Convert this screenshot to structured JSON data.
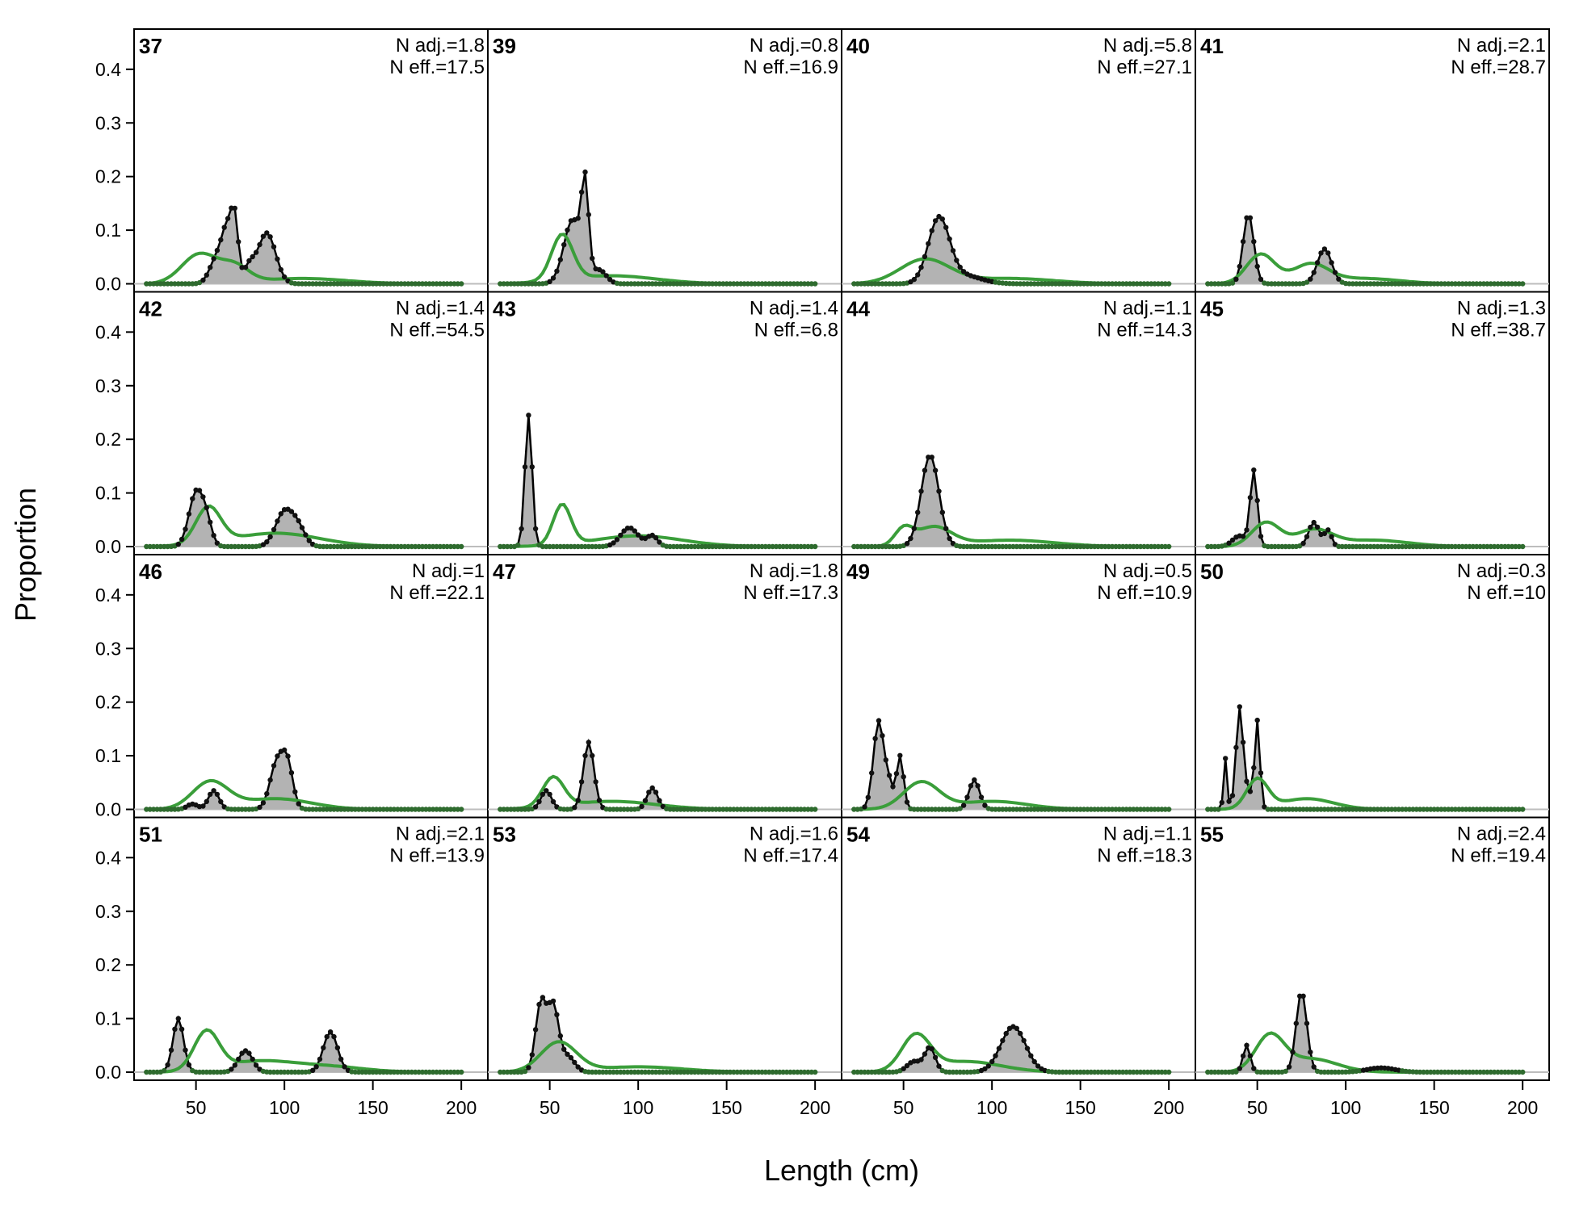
{
  "chart_data": {
    "type": "line",
    "title": "",
    "xlabel": "Length (cm)",
    "ylabel": "Proportion",
    "xlim": [
      15,
      215
    ],
    "ylim": [
      -0.015,
      0.475
    ],
    "xticks": [
      "50",
      "100",
      "150",
      "200"
    ],
    "yticks": [
      "0.0",
      "0.1",
      "0.2",
      "0.3",
      "0.4"
    ],
    "x_range": [
      22,
      200
    ],
    "x_step": 2,
    "series": [
      {
        "role": "observed",
        "color": "#000000",
        "fill": "#b3b3b3"
      },
      {
        "role": "expected",
        "color": "#3a9e3a"
      }
    ],
    "panels": [
      {
        "id": "37",
        "n_adj": "N adj.=1.8",
        "n_eff": "N eff.=17.5",
        "obs": [
          [
            68,
            0.092,
            3
          ],
          [
            72,
            0.1,
            2
          ],
          [
            62,
            0.05,
            4
          ],
          [
            90,
            0.095,
            5
          ],
          [
            80,
            0.03,
            3
          ]
        ],
        "exp": [
          [
            52,
            0.055,
            10
          ],
          [
            72,
            0.03,
            8
          ],
          [
            110,
            0.01,
            25
          ]
        ]
      },
      {
        "id": "42",
        "n_adj": "N adj.=1.4",
        "n_eff": "N eff.=54.5",
        "obs": [
          [
            50,
            0.1,
            4
          ],
          [
            56,
            0.04,
            3
          ],
          [
            100,
            0.065,
            5
          ],
          [
            108,
            0.03,
            4
          ]
        ],
        "exp": [
          [
            57,
            0.068,
            7
          ],
          [
            95,
            0.025,
            25
          ]
        ]
      },
      {
        "id": "46",
        "n_adj": "N adj.=1",
        "n_eff": "N eff.=22.1",
        "obs": [
          [
            96,
            0.09,
            4
          ],
          [
            102,
            0.07,
            3
          ],
          [
            60,
            0.035,
            3
          ],
          [
            48,
            0.01,
            3
          ]
        ],
        "exp": [
          [
            58,
            0.05,
            10
          ],
          [
            95,
            0.02,
            20
          ]
        ]
      },
      {
        "id": "51",
        "n_adj": "N adj.=2.1",
        "n_eff": "N eff.=13.9",
        "obs": [
          [
            40,
            0.1,
            3
          ],
          [
            78,
            0.04,
            4
          ],
          [
            126,
            0.075,
            4
          ]
        ],
        "exp": [
          [
            56,
            0.072,
            7
          ],
          [
            85,
            0.02,
            20
          ],
          [
            125,
            0.01,
            20
          ]
        ]
      },
      {
        "id": "39",
        "n_adj": "N adj.=0.8",
        "n_eff": "N eff.=16.9",
        "obs": [
          [
            63,
            0.12,
            5
          ],
          [
            70,
            0.16,
            2
          ],
          [
            78,
            0.025,
            4
          ]
        ],
        "exp": [
          [
            57,
            0.085,
            6
          ],
          [
            85,
            0.015,
            25
          ]
        ]
      },
      {
        "id": "43",
        "n_adj": "N adj.=1.4",
        "n_eff": "N eff.=6.8",
        "obs": [
          [
            38,
            0.245,
            2
          ],
          [
            95,
            0.035,
            5
          ],
          [
            108,
            0.02,
            3
          ]
        ],
        "exp": [
          [
            57,
            0.075,
            5
          ],
          [
            100,
            0.02,
            25
          ]
        ]
      },
      {
        "id": "47",
        "n_adj": "N adj.=1.8",
        "n_eff": "N eff.=17.3",
        "obs": [
          [
            72,
            0.125,
            3
          ],
          [
            108,
            0.04,
            3
          ],
          [
            48,
            0.035,
            3
          ]
        ],
        "exp": [
          [
            52,
            0.055,
            6
          ],
          [
            85,
            0.015,
            25
          ]
        ]
      },
      {
        "id": "53",
        "n_adj": "N adj.=1.6",
        "n_eff": "N eff.=17.4",
        "obs": [
          [
            45,
            0.13,
            3
          ],
          [
            52,
            0.12,
            3
          ],
          [
            60,
            0.03,
            4
          ]
        ],
        "exp": [
          [
            55,
            0.055,
            10
          ],
          [
            100,
            0.01,
            25
          ]
        ]
      },
      {
        "id": "40",
        "n_adj": "N adj.=5.8",
        "n_eff": "N eff.=27.1",
        "obs": [
          [
            70,
            0.12,
            6
          ],
          [
            84,
            0.015,
            10
          ]
        ],
        "exp": [
          [
            62,
            0.045,
            14
          ],
          [
            110,
            0.01,
            25
          ]
        ]
      },
      {
        "id": "44",
        "n_adj": "N adj.=1.1",
        "n_eff": "N eff.=14.3",
        "obs": [
          [
            65,
            0.17,
            5
          ]
        ],
        "exp": [
          [
            50,
            0.03,
            5
          ],
          [
            67,
            0.035,
            10
          ],
          [
            110,
            0.012,
            25
          ]
        ]
      },
      {
        "id": "49",
        "n_adj": "N adj.=0.5",
        "n_eff": "N eff.=10.9",
        "obs": [
          [
            36,
            0.165,
            3
          ],
          [
            48,
            0.1,
            2
          ],
          [
            90,
            0.055,
            3
          ],
          [
            42,
            0.04,
            2
          ]
        ],
        "exp": [
          [
            60,
            0.05,
            10
          ],
          [
            100,
            0.015,
            20
          ]
        ]
      },
      {
        "id": "54",
        "n_adj": "N adj.=1.1",
        "n_eff": "N eff.=18.3",
        "obs": [
          [
            112,
            0.085,
            7
          ],
          [
            65,
            0.045,
            3
          ],
          [
            56,
            0.02,
            4
          ]
        ],
        "exp": [
          [
            57,
            0.065,
            8
          ],
          [
            85,
            0.02,
            20
          ]
        ]
      },
      {
        "id": "41",
        "n_adj": "N adj.=2.1",
        "n_eff": "N eff.=28.7",
        "obs": [
          [
            45,
            0.13,
            3
          ],
          [
            88,
            0.065,
            4
          ]
        ],
        "exp": [
          [
            52,
            0.055,
            8
          ],
          [
            80,
            0.035,
            10
          ],
          [
            110,
            0.01,
            20
          ]
        ]
      },
      {
        "id": "45",
        "n_adj": "N adj.=1.3",
        "n_eff": "N eff.=38.7",
        "obs": [
          [
            48,
            0.14,
            2
          ],
          [
            82,
            0.045,
            3
          ],
          [
            90,
            0.03,
            2
          ],
          [
            40,
            0.02,
            4
          ]
        ],
        "exp": [
          [
            55,
            0.045,
            8
          ],
          [
            82,
            0.03,
            10
          ],
          [
            115,
            0.012,
            20
          ]
        ]
      },
      {
        "id": "50",
        "n_adj": "N adj.=0.3",
        "n_eff": "N eff.=10",
        "obs": [
          [
            40,
            0.19,
            2
          ],
          [
            50,
            0.165,
            1.5
          ],
          [
            32,
            0.095,
            1
          ],
          [
            45,
            0.03,
            2
          ]
        ],
        "exp": [
          [
            50,
            0.055,
            6
          ],
          [
            78,
            0.02,
            15
          ]
        ]
      },
      {
        "id": "55",
        "n_adj": "N adj.=2.4",
        "n_eff": "N eff.=19.4",
        "obs": [
          [
            75,
            0.15,
            3
          ],
          [
            44,
            0.05,
            2
          ],
          [
            120,
            0.008,
            8
          ]
        ],
        "exp": [
          [
            57,
            0.065,
            8
          ],
          [
            80,
            0.025,
            15
          ]
        ]
      }
    ]
  }
}
